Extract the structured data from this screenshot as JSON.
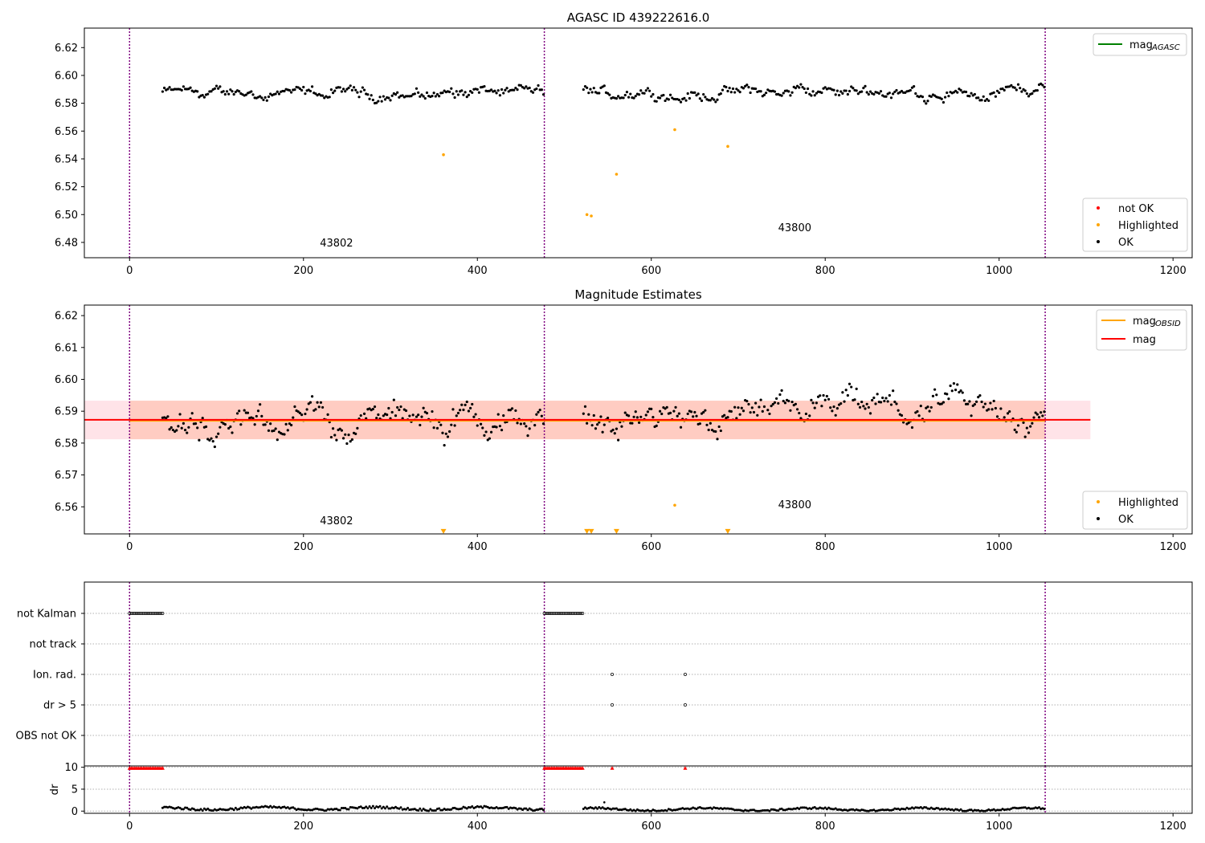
{
  "chart_data": [
    {
      "type": "scatter",
      "title": "AGASC ID 439222616.0",
      "xlim": [
        -52,
        1222
      ],
      "ylim": [
        6.469,
        6.634
      ],
      "x_ticks": [
        0,
        200,
        400,
        600,
        800,
        1000,
        1200
      ],
      "y_ticks": [
        6.48,
        6.5,
        6.52,
        6.54,
        6.56,
        6.58,
        6.6,
        6.62
      ],
      "y_tick_labels": [
        "6.48",
        "6.50",
        "6.52",
        "6.54",
        "6.56",
        "6.58",
        "6.60",
        "6.62"
      ],
      "obsid_lines": [
        0,
        477,
        1053
      ],
      "obsid_labels": [
        {
          "x": 238,
          "y": 6.477,
          "text": "43802"
        },
        {
          "x": 765,
          "y": 6.488,
          "text": "43800"
        }
      ],
      "series": [
        {
          "name": "OK",
          "style": "points",
          "color": "#000000",
          "segments": [
            {
              "x_start": 38,
              "x_end": 476,
              "mean": 6.5875,
              "noise": 0.006
            },
            {
              "x_start": 522,
              "x_end": 1053,
              "mean": 6.5875,
              "noise": 0.006
            }
          ]
        },
        {
          "name": "Highlighted",
          "style": "points",
          "color": "#ffa500",
          "points": [
            [
              361,
              6.543
            ],
            [
              526,
              6.5
            ],
            [
              531,
              6.499
            ],
            [
              560,
              6.529
            ],
            [
              627,
              6.561
            ],
            [
              688,
              6.549
            ]
          ]
        }
      ],
      "legend_upper": [
        {
          "label": "mag",
          "sub": "AGASC",
          "color": "#008000",
          "style": "line"
        }
      ],
      "legend_lower": [
        {
          "label": "not OK",
          "color": "#ff0000",
          "style": "marker"
        },
        {
          "label": "Highlighted",
          "color": "#ffa500",
          "style": "marker"
        },
        {
          "label": "OK",
          "color": "#000000",
          "style": "marker"
        }
      ]
    },
    {
      "type": "scatter",
      "title": "Magnitude Estimates",
      "xlim": [
        -52,
        1222
      ],
      "ylim": [
        6.5515,
        6.6233
      ],
      "x_ticks": [
        0,
        200,
        400,
        600,
        800,
        1000,
        1200
      ],
      "y_ticks": [
        6.56,
        6.57,
        6.58,
        6.59,
        6.6,
        6.61,
        6.62
      ],
      "y_tick_labels": [
        "6.56",
        "6.57",
        "6.58",
        "6.59",
        "6.60",
        "6.61",
        "6.62"
      ],
      "obsid_lines": [
        0,
        477,
        1053
      ],
      "obsid_labels": [
        {
          "x": 238,
          "y": 6.5545,
          "text": "43802"
        },
        {
          "x": 765,
          "y": 6.5595,
          "text": "43800"
        }
      ],
      "bands": [
        {
          "x_start": -52,
          "x_end": 1105,
          "y_low": 6.5812,
          "y_high": 6.5933,
          "color": "#ffc0cb",
          "opacity": 0.45
        },
        {
          "x_start": 0,
          "x_end": 1053,
          "y_low": 6.5812,
          "y_high": 6.5933,
          "color": "#ffa07a",
          "opacity": 0.35
        }
      ],
      "lines": [
        {
          "name": "mag OBSID",
          "color": "#ffa500",
          "segments": [
            [
              0,
              477,
              6.587
            ],
            [
              477,
              1053,
              6.587
            ]
          ]
        },
        {
          "name": "mag",
          "color": "#ff0000",
          "segments": [
            [
              -52,
              1105,
              6.5873
            ]
          ]
        }
      ],
      "series": [
        {
          "name": "OK",
          "style": "points",
          "color": "#000000",
          "segments": [
            {
              "x_start": 38,
              "x_end": 476,
              "mean": 6.5872,
              "noise": 0.0065
            },
            {
              "x_start": 522,
              "x_end": 1053,
              "mean": 6.5872,
              "noise": 0.0065
            }
          ]
        },
        {
          "name": "Highlighted",
          "style": "points",
          "color": "#ffa500",
          "points": [
            [
              627,
              6.5605
            ]
          ]
        },
        {
          "name": "Highlighted (off scale)",
          "style": "triangles",
          "color": "#ffa500",
          "points": [
            [
              361,
              6.5523
            ],
            [
              526,
              6.5523
            ],
            [
              531,
              6.5523
            ],
            [
              560,
              6.5523
            ],
            [
              688,
              6.5523
            ]
          ]
        }
      ],
      "legend_upper": [
        {
          "label": "mag",
          "sub": "OBSID",
          "color": "#ffa500",
          "style": "line"
        },
        {
          "label": "mag",
          "sub": "",
          "color": "#ff0000",
          "style": "line"
        }
      ],
      "legend_lower": [
        {
          "label": "Highlighted",
          "color": "#ffa500",
          "style": "marker"
        },
        {
          "label": "OK",
          "color": "#000000",
          "style": "marker"
        }
      ]
    },
    {
      "type": "scatter",
      "xlim": [
        -52,
        1222
      ],
      "categories": [
        "not Kalman",
        "not track",
        "Ion. rad.",
        "dr > 5",
        "OBS not OK"
      ],
      "obsid_lines": [
        0,
        477,
        1053
      ],
      "flags": [
        {
          "category": "not Kalman",
          "x_ranges": [
            [
              0,
              38
            ],
            [
              477,
              522
            ]
          ]
        },
        {
          "category": "Ion. rad.",
          "x_points": [
            555,
            639
          ]
        },
        {
          "category": "dr > 5",
          "x_points": [
            555,
            639
          ]
        }
      ]
    },
    {
      "type": "scatter",
      "ylabel": "dr",
      "xlim": [
        -52,
        1222
      ],
      "ylim": [
        -0.5,
        10.3
      ],
      "x_ticks": [
        0,
        200,
        400,
        600,
        800,
        1000,
        1200
      ],
      "y_ticks": [
        0,
        5,
        10
      ],
      "y_tick_labels": [
        "0",
        "5",
        "10"
      ],
      "obsid_lines": [
        0,
        477,
        1053
      ],
      "clipped": {
        "y": 9.8,
        "color": "#ff0000",
        "x_ranges": [
          [
            0,
            38
          ],
          [
            477,
            522
          ]
        ],
        "x_points": [
          555,
          639
        ]
      },
      "series": [
        {
          "name": "dr",
          "color": "#000000",
          "segments": [
            {
              "x_start": 38,
              "x_end": 476,
              "mean": 0.6,
              "noise": 0.25
            },
            {
              "x_start": 522,
              "x_end": 1053,
              "mean": 0.4,
              "noise": 0.2
            }
          ]
        }
      ]
    }
  ]
}
